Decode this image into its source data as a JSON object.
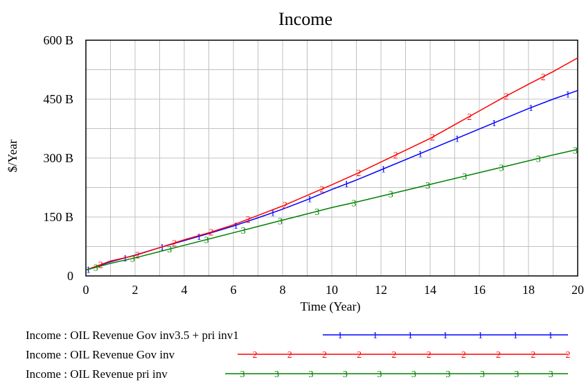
{
  "chart_data": {
    "type": "line",
    "title": "Income",
    "xlabel": "Time (Year)",
    "ylabel": "$/Year",
    "xlim": [
      0,
      20
    ],
    "ylim": [
      0,
      600
    ],
    "x_ticks": [
      "0",
      "2",
      "4",
      "6",
      "8",
      "10",
      "12",
      "14",
      "16",
      "18",
      "20"
    ],
    "y_ticks": [
      "0",
      "150 B",
      "300 B",
      "450 B",
      "600 B"
    ],
    "grid": true,
    "legend_position": "bottom",
    "x": [
      0,
      1,
      2,
      3,
      4,
      5,
      6,
      7,
      8,
      9,
      10,
      11,
      12,
      13,
      14,
      15,
      16,
      17,
      18,
      19,
      20
    ],
    "series": [
      {
        "name": "Income : OIL Revenue Gov inv3.5 + pri inv1",
        "marker": "1",
        "color": "#0000ff",
        "values": [
          15,
          36,
          53,
          72,
          90,
          108,
          127,
          148,
          170,
          194,
          220,
          244,
          270,
          296,
          322,
          348,
          374,
          400,
          426,
          450,
          472
        ]
      },
      {
        "name": "Income : OIL Revenue Gov inv",
        "marker": "2",
        "color": "#ff0000",
        "values": [
          15,
          38,
          52,
          72,
          92,
          110,
          130,
          154,
          178,
          205,
          232,
          260,
          290,
          320,
          350,
          385,
          420,
          455,
          488,
          520,
          555
        ]
      },
      {
        "name": "Income : OIL Revenue pri inv",
        "marker": "3",
        "color": "#008000",
        "values": [
          15,
          32,
          46,
          62,
          78,
          94,
          110,
          126,
          142,
          158,
          174,
          188,
          203,
          218,
          233,
          248,
          263,
          278,
          293,
          308,
          322
        ]
      }
    ]
  }
}
